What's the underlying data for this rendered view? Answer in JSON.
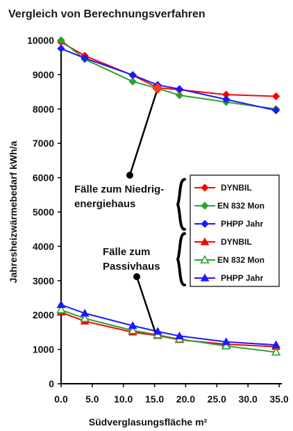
{
  "chart_data": {
    "type": "line",
    "title": "Vergleich von Berechnungsverfahren",
    "xlabel": "Südverglasungsfläche m²",
    "ylabel": "Jahresheizwärmebedarf kWh/a",
    "xlim": [
      0,
      35
    ],
    "ylim": [
      0,
      10000
    ],
    "x_ticks": [
      "0.0",
      "5.0",
      "10.0",
      "15.0",
      "20.0",
      "25.0",
      "30.0",
      "35.0"
    ],
    "y_ticks": [
      "0",
      "1000",
      "2000",
      "3000",
      "4000",
      "5000",
      "6000",
      "7000",
      "8000",
      "9000",
      "10000"
    ],
    "grid": false,
    "legend": "right",
    "annotations": [
      {
        "text": [
          "Fälle zum Niedrig-",
          "energiehaus"
        ],
        "point": [
          15.5,
          8600
        ]
      },
      {
        "text": [
          "Fälle zum",
          "Passivhaus"
        ],
        "point": [
          15,
          1420
        ]
      }
    ],
    "series": [
      {
        "name": "DYNBIL",
        "group": "niedrig",
        "marker": "diamond",
        "color": "#ff0000",
        "x": [
          0,
          3.8,
          11.5,
          15.5,
          19,
          26.5,
          34.5
        ],
        "y": [
          9950,
          9550,
          8980,
          8620,
          8560,
          8420,
          8370
        ]
      },
      {
        "name": "EN 832 Mon",
        "group": "niedrig",
        "marker": "diamond",
        "color": "#2fa02f",
        "x": [
          0,
          3.8,
          11.5,
          15.5,
          19,
          26.5,
          34.5
        ],
        "y": [
          10000,
          9450,
          8800,
          8600,
          8400,
          8200,
          8000
        ]
      },
      {
        "name": "PHPP Jahr",
        "group": "niedrig",
        "marker": "diamond",
        "color": "#1a1aff",
        "x": [
          0,
          3.8,
          11.5,
          15.5,
          19,
          26.5,
          34.5
        ],
        "y": [
          9760,
          9480,
          8990,
          8700,
          8580,
          8280,
          7960
        ]
      },
      {
        "name": "DYNBIL",
        "group": "passiv",
        "marker": "triangle",
        "color": "#ff0000",
        "x": [
          0,
          3.8,
          11.5,
          15.5,
          19,
          26.5,
          34.5
        ],
        "y": [
          2080,
          1820,
          1500,
          1400,
          1280,
          1150,
          1080
        ]
      },
      {
        "name": "EN 832 Mon",
        "group": "passiv",
        "marker": "triangle-open",
        "color": "#2fa02f",
        "x": [
          0,
          3.8,
          11.5,
          15.5,
          19,
          26.5,
          34.5
        ],
        "y": [
          2150,
          1900,
          1550,
          1420,
          1300,
          1100,
          920
        ]
      },
      {
        "name": "PHPP Jahr",
        "group": "passiv",
        "marker": "triangle",
        "color": "#1a1aff",
        "x": [
          0,
          3.8,
          11.5,
          15.5,
          19,
          26.5,
          34.5
        ],
        "y": [
          2300,
          2050,
          1690,
          1520,
          1390,
          1220,
          1130
        ]
      }
    ]
  }
}
